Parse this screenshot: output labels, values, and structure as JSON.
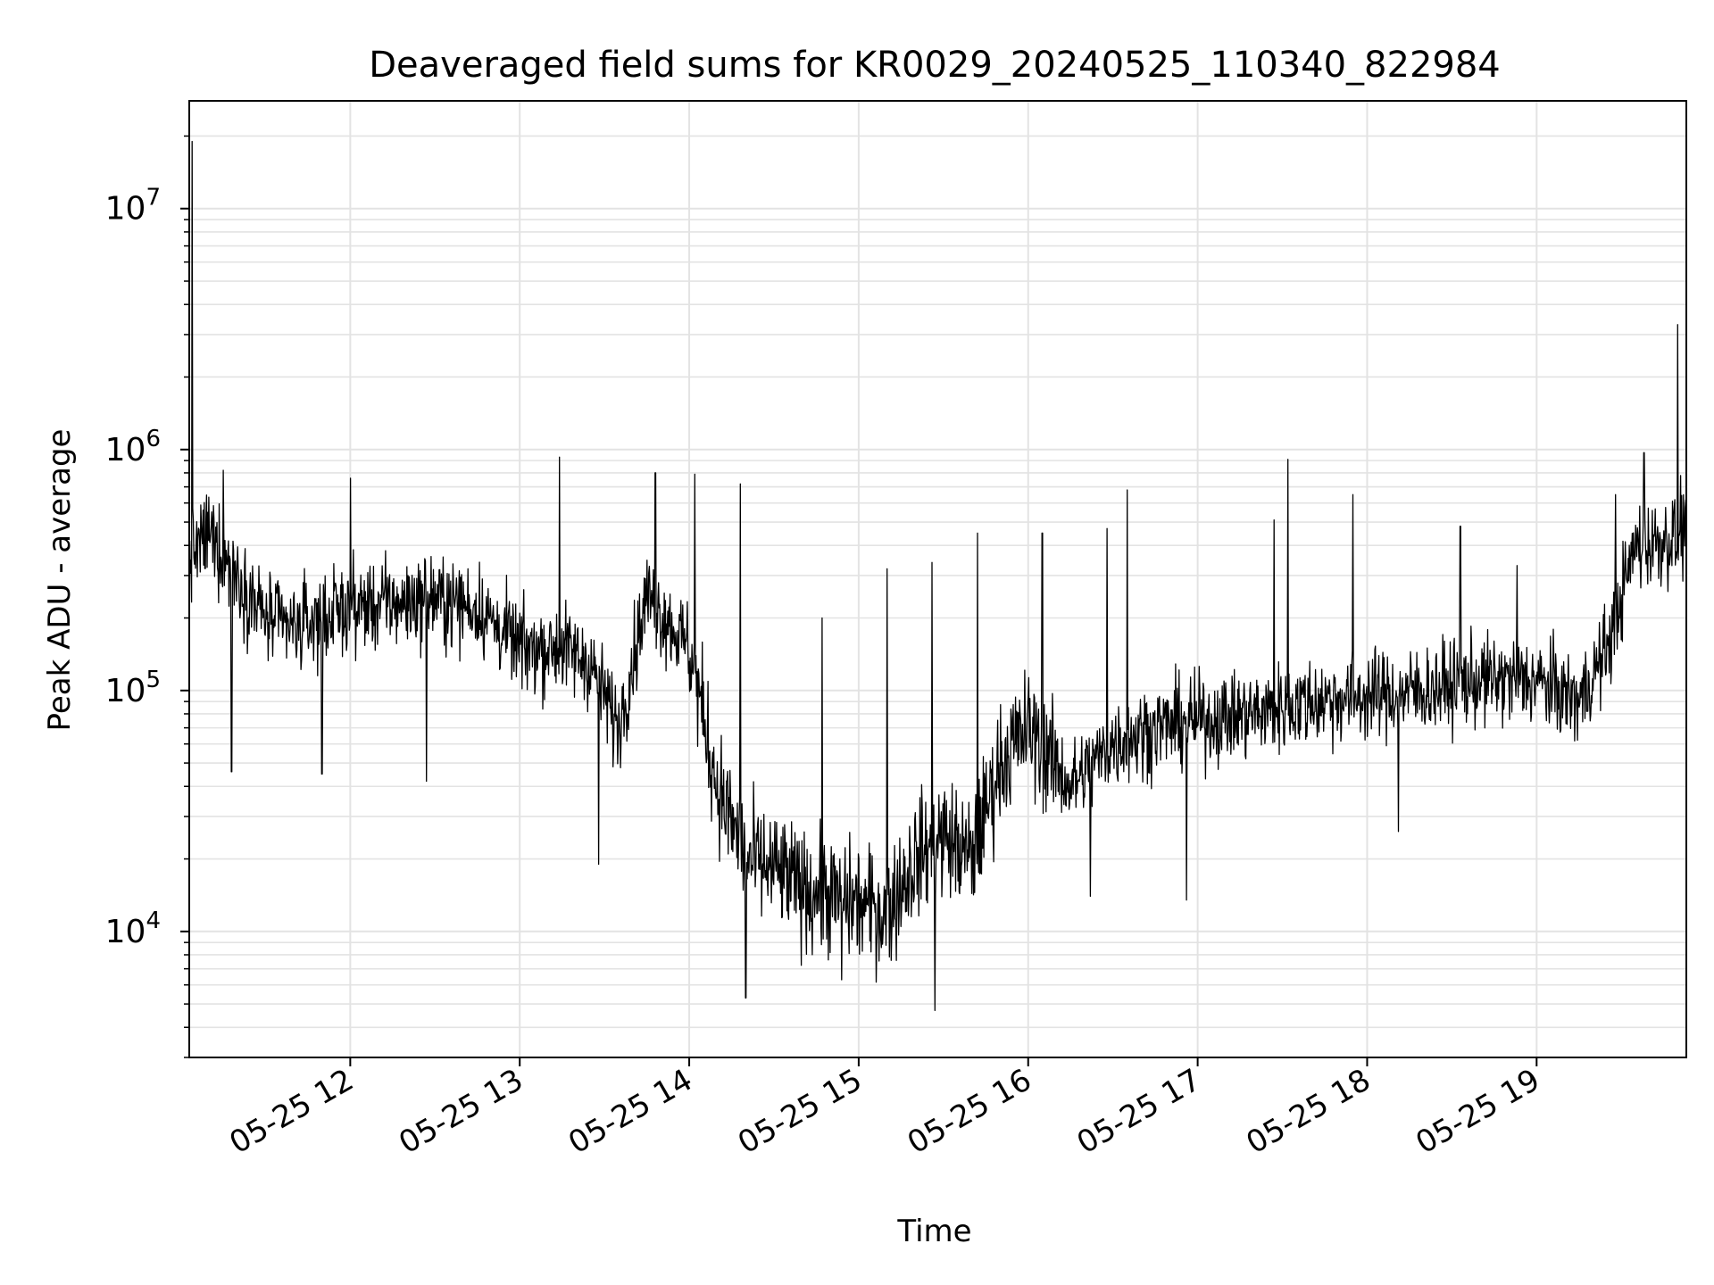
{
  "chart_data": {
    "type": "line",
    "title": "Deaveraged field sums for KR0029_20240525_110340_822984",
    "xlabel": "Time",
    "ylabel": "Peak ADU - average",
    "yscale": "log",
    "ylim": [
      3000,
      28000000
    ],
    "xlim": [
      "2024-05-25 11:03",
      "2024-05-25 19:53"
    ],
    "grid": true,
    "line_color": "#000000",
    "x_ticks": [
      "05-25 12",
      "05-25 13",
      "05-25 14",
      "05-25 15",
      "05-25 16",
      "05-25 17",
      "05-25 18",
      "05-25 19"
    ],
    "x_tick_times": [
      "2024-05-25 12:00",
      "2024-05-25 13:00",
      "2024-05-25 14:00",
      "2024-05-25 15:00",
      "2024-05-25 16:00",
      "2024-05-25 17:00",
      "2024-05-25 18:00",
      "2024-05-25 19:00"
    ],
    "y_ticks": [
      {
        "value": 10000,
        "base": "10",
        "exp": "4"
      },
      {
        "value": 100000,
        "base": "10",
        "exp": "5"
      },
      {
        "value": 1000000,
        "base": "10",
        "exp": "6"
      },
      {
        "value": 10000000,
        "base": "10",
        "exp": "7"
      }
    ],
    "series": [
      {
        "values": {
          "x": [
            "2024-05-25 11:03",
            "2024-05-25 11:10",
            "2024-05-25 11:20",
            "2024-05-25 11:30",
            "2024-05-25 11:40",
            "2024-05-25 11:50",
            "2024-05-25 12:00",
            "2024-05-25 12:15",
            "2024-05-25 12:30",
            "2024-05-25 12:45",
            "2024-05-25 13:00",
            "2024-05-25 13:15",
            "2024-05-25 13:25",
            "2024-05-25 13:35",
            "2024-05-25 13:45",
            "2024-05-25 14:00",
            "2024-05-25 14:10",
            "2024-05-25 14:20",
            "2024-05-25 14:30",
            "2024-05-25 14:40",
            "2024-05-25 14:50",
            "2024-05-25 15:00",
            "2024-05-25 15:10",
            "2024-05-25 15:20",
            "2024-05-25 15:30",
            "2024-05-25 15:40",
            "2024-05-25 15:50",
            "2024-05-25 16:00",
            "2024-05-25 16:15",
            "2024-05-25 16:30",
            "2024-05-25 16:45",
            "2024-05-25 17:00",
            "2024-05-25 17:20",
            "2024-05-25 17:40",
            "2024-05-25 18:00",
            "2024-05-25 18:20",
            "2024-05-25 18:40",
            "2024-05-25 19:00",
            "2024-05-25 19:15",
            "2024-05-25 19:25",
            "2024-05-25 19:35",
            "2024-05-25 19:45",
            "2024-05-25 19:53"
          ],
          "y": [
            350000,
            450000,
            300000,
            200000,
            180000,
            200000,
            220000,
            230000,
            240000,
            220000,
            150000,
            150000,
            130000,
            70000,
            250000,
            150000,
            40000,
            20000,
            18000,
            15000,
            14000,
            13000,
            12000,
            20000,
            25000,
            20000,
            50000,
            70000,
            40000,
            60000,
            70000,
            75000,
            80000,
            90000,
            95000,
            100000,
            110000,
            110000,
            90000,
            150000,
            400000,
            420000,
            450000
          ]
        },
        "spikes": {
          "x": [
            "2024-05-25 11:04",
            "2024-05-25 11:15",
            "2024-05-25 12:00",
            "2024-05-25 13:14",
            "2024-05-25 13:48",
            "2024-05-25 14:02",
            "2024-05-25 14:18",
            "2024-05-25 14:47",
            "2024-05-25 15:10",
            "2024-05-25 15:26",
            "2024-05-25 15:42",
            "2024-05-25 16:05",
            "2024-05-25 16:28",
            "2024-05-25 16:35",
            "2024-05-25 17:27",
            "2024-05-25 17:32",
            "2024-05-25 17:55",
            "2024-05-25 18:33",
            "2024-05-25 18:53",
            "2024-05-25 19:28",
            "2024-05-25 19:38",
            "2024-05-25 19:50",
            "2024-05-25 19:51"
          ],
          "y": [
            19000000,
            820000,
            760000,
            930000,
            800000,
            790000,
            720000,
            200000,
            320000,
            340000,
            450000,
            450000,
            470000,
            680000,
            510000,
            910000,
            650000,
            480000,
            330000,
            650000,
            970000,
            3300000,
            780000
          ]
        },
        "dips": {
          "x": [
            "2024-05-25 11:18",
            "2024-05-25 11:50",
            "2024-05-25 12:27",
            "2024-05-25 13:28",
            "2024-05-25 14:20",
            "2024-05-25 14:54",
            "2024-05-25 15:27",
            "2024-05-25 16:22",
            "2024-05-25 16:56",
            "2024-05-25 18:11"
          ],
          "y": [
            46000,
            45000,
            42000,
            19000,
            5300,
            6300,
            4700,
            14000,
            13500,
            26000
          ]
        }
      }
    ]
  }
}
